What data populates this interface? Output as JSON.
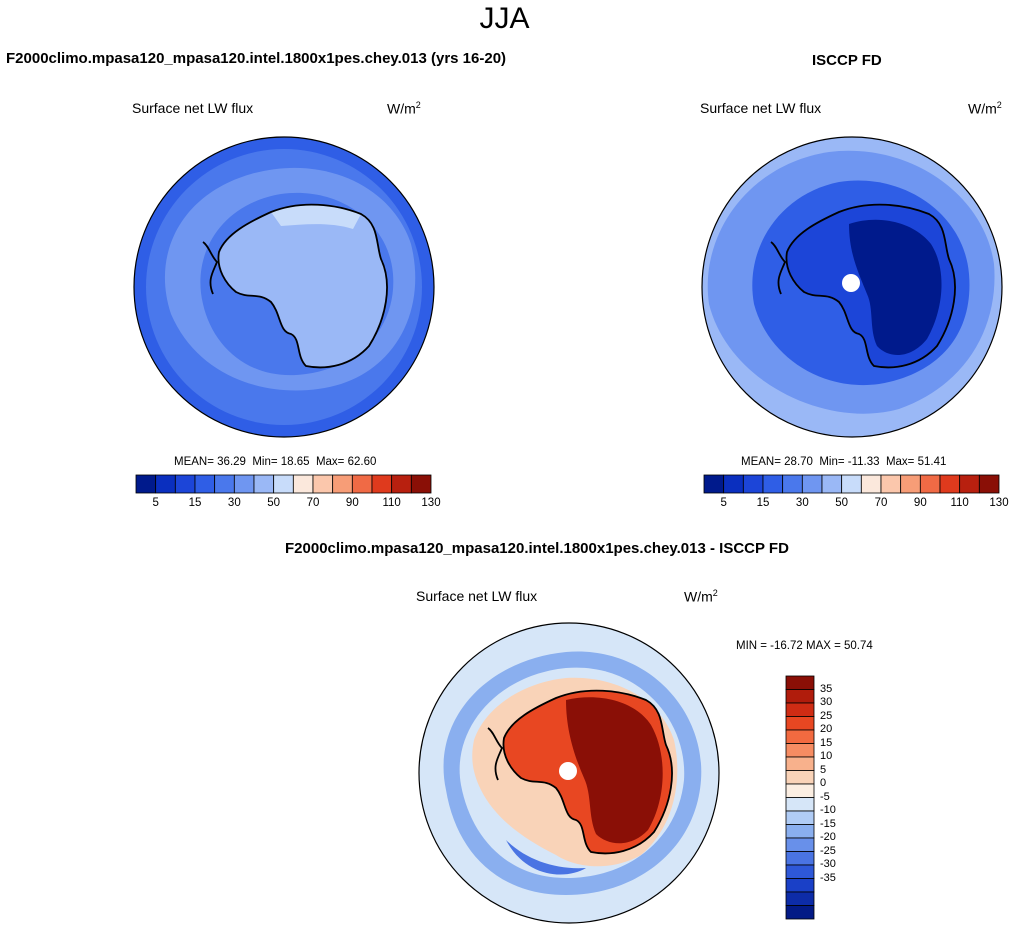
{
  "title": "JJA",
  "panels": [
    {
      "heading": "F2000climo.mpasa120_mpasa120.intel.1800x1pes.chey.013 (yrs 16-20)",
      "variable": "Surface net LW flux",
      "units_base": "W/m",
      "units_exp": "2",
      "stats": {
        "mean_label": "MEAN=",
        "mean": "36.29",
        "min_label": "Min=",
        "min": "18.65",
        "max_label": "Max=",
        "max": "62.60"
      }
    },
    {
      "heading": "ISCCP FD",
      "variable": "Surface net LW flux",
      "units_base": "W/m",
      "units_exp": "2",
      "stats": {
        "mean_label": "MEAN=",
        "mean": "28.70",
        "min_label": "Min=",
        "min": "-11.33",
        "max_label": "Max=",
        "max": "51.41"
      }
    },
    {
      "heading": "F2000climo.mpasa120_mpasa120.intel.1800x1pes.chey.013 - ISCCP FD",
      "variable": "Surface net LW flux",
      "units_base": "W/m",
      "units_exp": "2",
      "stats_text": "MIN = -16.72 MAX =  50.74"
    }
  ],
  "colorbar_abs": {
    "colors": [
      "#001a8c",
      "#0a2fbf",
      "#1c45d8",
      "#2f5ee6",
      "#4a78ec",
      "#6f96f1",
      "#9ab8f6",
      "#c8dcfa",
      "#fbe8dc",
      "#fbc7ac",
      "#f79d77",
      "#f06a45",
      "#df3a1d",
      "#b8200f",
      "#8a0f06"
    ],
    "tick_labels": [
      "5",
      "15",
      "30",
      "50",
      "70",
      "90",
      "110",
      "130"
    ]
  },
  "colorbar_diff": {
    "colors": [
      "#8a0f06",
      "#b01c0c",
      "#cf2c14",
      "#e84722",
      "#f26a40",
      "#f68c62",
      "#f8b18c",
      "#f9d3b8",
      "#fbeee2",
      "#d6e6f8",
      "#b0ccf5",
      "#8aafef",
      "#6890ea",
      "#4a74e3",
      "#2e58d8",
      "#1a40c7",
      "#0d2ca8",
      "#031a86"
    ],
    "tick_labels": [
      "35",
      "30",
      "25",
      "20",
      "15",
      "10",
      "5",
      "0",
      "-5",
      "-10",
      "-15",
      "-20",
      "-25",
      "-30",
      "-35"
    ]
  },
  "map_colors": {
    "model_ocean": "#4a78ec",
    "model_band": "#6f96f1",
    "model_outer": "#2f5ee6",
    "model_land": "#9ab8f6",
    "model_land_high": "#c8dcfa",
    "obs_ocean": "#6f96f1",
    "obs_outer": "#9ab8f6",
    "obs_coast": "#2f5ee6",
    "obs_land": "#1c45d8",
    "obs_land_deep": "#001a8c",
    "diff_ocean": "#d6e6f8",
    "diff_ring": "#8aafef",
    "diff_ring_dark": "#4a74e3",
    "diff_shelf": "#f9d3b8",
    "diff_land": "#e84722",
    "diff_land_deep": "#8a0f06",
    "pole_hole": "#ffffff",
    "coastline": "#000000"
  }
}
